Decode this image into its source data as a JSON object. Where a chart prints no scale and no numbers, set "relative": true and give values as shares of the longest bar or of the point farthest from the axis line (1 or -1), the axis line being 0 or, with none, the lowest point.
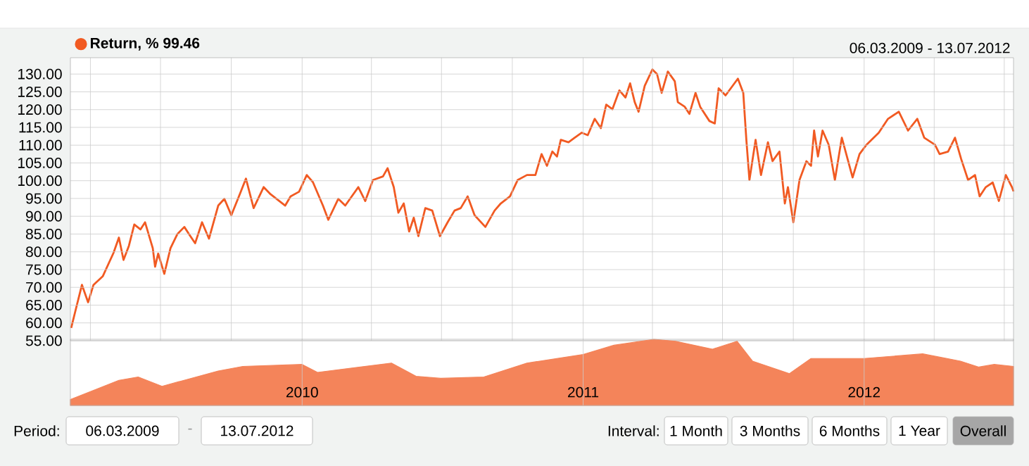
{
  "chart_data": [
    {
      "type": "line",
      "subtitle": "06.03.2009 - 13.07.2012",
      "legend": "top left",
      "grid": true,
      "tick_labels": "y",
      "xlim": [
        "2009-03-06",
        "2012-07-13"
      ],
      "xticks": [
        {
          "value": "2009-04-01",
          "label": null
        },
        {
          "value": "2009-07-01",
          "label": null
        },
        {
          "value": "2009-10-01",
          "label": null
        },
        {
          "value": "2010-01-01",
          "label": null
        },
        {
          "value": "2010-04-01",
          "label": null
        },
        {
          "value": "2010-07-01",
          "label": null
        },
        {
          "value": "2010-10-01",
          "label": null
        },
        {
          "value": "2011-01-01",
          "label": null
        },
        {
          "value": "2011-04-01",
          "label": null
        },
        {
          "value": "2011-07-01",
          "label": null
        },
        {
          "value": "2011-10-01",
          "label": null
        },
        {
          "value": "2012-01-01",
          "label": null
        },
        {
          "value": "2012-04-01",
          "label": null
        },
        {
          "value": "2012-07-01",
          "label": null
        }
      ],
      "ylim": [
        55,
        134.6
      ],
      "yticks": [
        {
          "value": 55,
          "label": "55.00"
        },
        {
          "value": 60,
          "label": "60.00"
        },
        {
          "value": 65,
          "label": "65.00"
        },
        {
          "value": 70,
          "label": "70.00"
        },
        {
          "value": 75,
          "label": "75.00"
        },
        {
          "value": 80,
          "label": "80.00"
        },
        {
          "value": 85,
          "label": "85.00"
        },
        {
          "value": 90,
          "label": "90.00"
        },
        {
          "value": 95,
          "label": "95.00"
        },
        {
          "value": 100,
          "label": "100.00"
        },
        {
          "value": 105,
          "label": "105.00"
        },
        {
          "value": 110,
          "label": "110.00"
        },
        {
          "value": 115,
          "label": "115.00"
        },
        {
          "value": 120,
          "label": "120.00"
        },
        {
          "value": 125,
          "label": "125.00"
        },
        {
          "value": 130,
          "label": "130.00"
        }
      ],
      "series": [
        {
          "name": "Return, % 99.46",
          "color": "#f15a22",
          "x": [
            "2009-03-07",
            "2009-03-13",
            "2009-03-21",
            "2009-03-29",
            "2009-04-05",
            "2009-04-17",
            "2009-05-01",
            "2009-05-08",
            "2009-05-14",
            "2009-05-21",
            "2009-05-28",
            "2009-06-05",
            "2009-06-11",
            "2009-06-21",
            "2009-06-24",
            "2009-06-28",
            "2009-07-06",
            "2009-07-14",
            "2009-07-23",
            "2009-08-01",
            "2009-08-07",
            "2009-08-15",
            "2009-08-24",
            "2009-09-02",
            "2009-09-14",
            "2009-09-22",
            "2009-10-01",
            "2009-10-12",
            "2009-10-20",
            "2009-10-30",
            "2009-11-12",
            "2009-11-21",
            "2009-12-10",
            "2009-12-17",
            "2009-12-28",
            "2010-01-07",
            "2010-01-15",
            "2010-01-28",
            "2010-02-04",
            "2010-02-17",
            "2010-02-26",
            "2010-03-15",
            "2010-03-24",
            "2010-04-03",
            "2010-04-16",
            "2010-04-22",
            "2010-04-30",
            "2010-05-06",
            "2010-05-13",
            "2010-05-20",
            "2010-05-26",
            "2010-06-01",
            "2010-06-10",
            "2010-06-19",
            "2010-06-29",
            "2010-07-09",
            "2010-07-18",
            "2010-07-26",
            "2010-08-04",
            "2010-08-13",
            "2010-08-27",
            "2010-09-08",
            "2010-09-16",
            "2010-09-28",
            "2010-10-08",
            "2010-10-20",
            "2010-10-31",
            "2010-11-08",
            "2010-11-15",
            "2010-11-22",
            "2010-11-28",
            "2010-12-03",
            "2010-12-13",
            "2010-12-21",
            "2010-12-30",
            "2011-01-07",
            "2011-01-16",
            "2011-01-24",
            "2011-01-31",
            "2011-02-08",
            "2011-02-17",
            "2011-02-25",
            "2011-03-03",
            "2011-03-09",
            "2011-03-14",
            "2011-03-22",
            "2011-04-01",
            "2011-04-07",
            "2011-04-13",
            "2011-04-21",
            "2011-04-30",
            "2011-05-04",
            "2011-05-13",
            "2011-05-19",
            "2011-05-27",
            "2011-06-02",
            "2011-06-14",
            "2011-06-21",
            "2011-06-26",
            "2011-07-05",
            "2011-07-21",
            "2011-07-28",
            "2011-08-01",
            "2011-08-05",
            "2011-08-13",
            "2011-08-20",
            "2011-08-29",
            "2011-09-04",
            "2011-09-13",
            "2011-09-20",
            "2011-09-24",
            "2011-10-01",
            "2011-10-09",
            "2011-10-18",
            "2011-10-24",
            "2011-10-28",
            "2011-11-02",
            "2011-11-08",
            "2011-11-16",
            "2011-11-24",
            "2011-12-03",
            "2011-12-17",
            "2011-12-26",
            "2012-01-04",
            "2012-01-20",
            "2012-02-01",
            "2012-02-15",
            "2012-02-27",
            "2012-03-10",
            "2012-03-19",
            "2012-04-02",
            "2012-04-08",
            "2012-04-19",
            "2012-04-28",
            "2012-05-06",
            "2012-05-15",
            "2012-05-24",
            "2012-05-30",
            "2012-06-07",
            "2012-06-16",
            "2012-06-24",
            "2012-07-03",
            "2012-07-11",
            "2012-07-13"
          ],
          "values": [
            58.6,
            63.8,
            70.7,
            65.8,
            70.7,
            73.1,
            79.7,
            84.0,
            77.7,
            81.7,
            87.7,
            86.3,
            88.3,
            81.0,
            75.8,
            79.5,
            73.8,
            81.0,
            85.0,
            87.0,
            85.0,
            82.4,
            88.3,
            83.7,
            93.0,
            94.9,
            90.3,
            96.2,
            100.6,
            92.3,
            98.2,
            96.2,
            93.0,
            95.6,
            96.9,
            101.6,
            99.6,
            93.0,
            89.0,
            94.9,
            93.0,
            98.2,
            94.3,
            100.2,
            101.2,
            103.5,
            98.2,
            91.0,
            93.6,
            85.7,
            89.6,
            84.4,
            92.3,
            91.6,
            84.4,
            88.3,
            91.6,
            92.3,
            95.6,
            90.3,
            87.0,
            91.6,
            93.6,
            95.6,
            100.2,
            101.6,
            101.6,
            107.5,
            104.2,
            108.2,
            106.8,
            111.5,
            110.8,
            112.1,
            113.5,
            112.8,
            117.4,
            114.8,
            121.4,
            120.1,
            125.4,
            123.4,
            127.4,
            122.1,
            119.4,
            126.7,
            131.3,
            130.0,
            124.7,
            130.7,
            128.0,
            122.1,
            120.8,
            118.8,
            124.7,
            120.8,
            116.8,
            116.1,
            126.0,
            124.0,
            128.7,
            124.7,
            111.5,
            100.2,
            111.5,
            101.6,
            110.8,
            105.5,
            108.2,
            93.6,
            98.2,
            88.3,
            100.2,
            105.5,
            104.2,
            114.1,
            106.8,
            114.1,
            110.1,
            100.2,
            112.1,
            100.9,
            107.5,
            110.1,
            113.5,
            117.4,
            119.4,
            114.1,
            117.4,
            112.1,
            110.1,
            107.5,
            108.2,
            112.1,
            106.1,
            100.2,
            101.6,
            95.6,
            98.2,
            99.5,
            94.3,
            101.6,
            98.2,
            97.0
          ]
        }
      ]
    },
    {
      "type": "area",
      "relative": true,
      "grid": "x",
      "xlim": [
        "2009-03-06",
        "2012-07-13"
      ],
      "xticks": [
        {
          "value": "2010-01-01",
          "label": "2010"
        },
        {
          "value": "2011-01-01",
          "label": "2011"
        },
        {
          "value": "2012-01-01",
          "label": "2012"
        }
      ],
      "series": [
        {
          "color": "#f4845a",
          "x": [
            "2009-03-06",
            "2009-05-08",
            "2009-06-02",
            "2009-07-03",
            "2009-09-14",
            "2009-10-16",
            "2010-01-01",
            "2010-01-21",
            "2010-04-27",
            "2010-05-29",
            "2010-06-30",
            "2010-08-25",
            "2010-10-20",
            "2011-01-01",
            "2011-02-10",
            "2011-04-03",
            "2011-05-01",
            "2011-06-18",
            "2011-07-20",
            "2011-08-09",
            "2011-09-26",
            "2011-10-24",
            "2012-01-01",
            "2012-03-17",
            "2012-05-05",
            "2012-05-29",
            "2012-06-18",
            "2012-07-13"
          ],
          "values": [
            0.09,
            0.38,
            0.43,
            0.29,
            0.52,
            0.59,
            0.62,
            0.5,
            0.64,
            0.44,
            0.41,
            0.43,
            0.64,
            0.77,
            0.91,
            1,
            0.97,
            0.85,
            0.97,
            0.67,
            0.48,
            0.71,
            0.71,
            0.78,
            0.67,
            0.58,
            0.62,
            0.59
          ]
        }
      ],
      "annotations": [
        "Period:",
        "06.03.2009",
        "-",
        "13.07.2012",
        "Interval:",
        "1 Month",
        "3 Months",
        "6 Months",
        "1 Year",
        "Overall"
      ]
    }
  ]
}
